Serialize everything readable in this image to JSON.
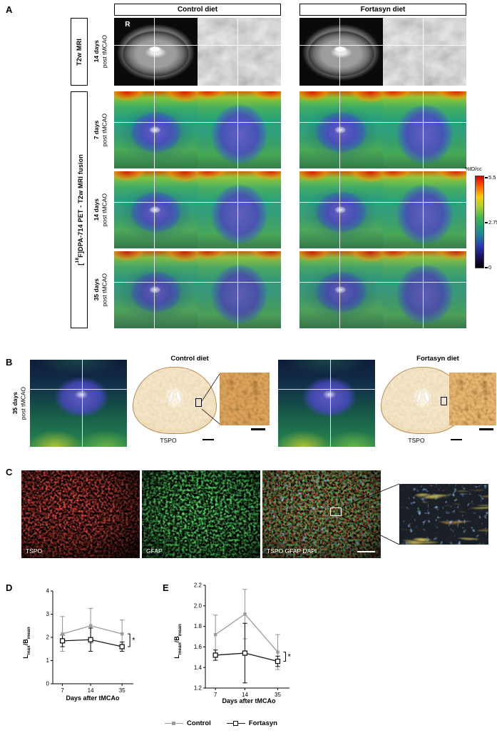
{
  "figure": {
    "panels": {
      "a": {
        "label": "A",
        "columns": [
          "Control diet",
          "Fortasyn diet"
        ],
        "t2w_box_label": "T2w MRI",
        "fusion_box_label": {
          "pre": "[",
          "sup": "18",
          "post": "F]DPA-714 PET - T2w MRI fusion"
        },
        "orientation_label": "R",
        "rows": [
          {
            "time": "14 days",
            "sub": "post tMCAO"
          },
          {
            "time": "7 days",
            "sub": "post tMCAO"
          },
          {
            "time": "14 days",
            "sub": "post tMCAO"
          },
          {
            "time": "35 days",
            "sub": "post tMCAO"
          }
        ],
        "colorbar": {
          "title": "%ID/cc",
          "tick_max": "5.5",
          "tick_mid": "2.75",
          "tick_min": "0"
        }
      },
      "b": {
        "label": "B",
        "side_time": "35 days",
        "side_sub": "post tMCAO",
        "groups": [
          {
            "title": "Control diet",
            "stain_label": "TSPO"
          },
          {
            "title": "Fortasyn diet",
            "stain_label": "TSPO"
          }
        ]
      },
      "c": {
        "label": "C",
        "images": [
          {
            "label": "TSPO"
          },
          {
            "label": "GFAP"
          },
          {
            "label": "TSPO GFAP DAPI"
          }
        ]
      },
      "d": {
        "label": "D"
      },
      "e": {
        "label": "E"
      }
    },
    "legend": {
      "control": "Control",
      "fortasyn": "Fortasyn"
    }
  },
  "chart_data": [
    {
      "id": "chart-d",
      "type": "line",
      "xlabel": "Days after tMCAo",
      "ylabel": "Lmax/Bmean",
      "ylabel_parts": {
        "base1": "L",
        "sub1": "max",
        "base2": "/B",
        "sub2": "mean"
      },
      "categories": [
        "7",
        "14",
        "35"
      ],
      "ylim": [
        0,
        4
      ],
      "yticks": [
        0,
        1,
        2,
        3,
        4
      ],
      "ytick_labels": [
        "0",
        "1",
        "2",
        "3",
        "4"
      ],
      "grid": false,
      "legend_position": "bottom",
      "series": [
        {
          "name": "Control",
          "color": "#9b9b9b",
          "marker": "filled-square",
          "values": [
            2.15,
            2.5,
            2.15
          ],
          "errors": [
            0.75,
            0.75,
            0.6
          ]
        },
        {
          "name": "Fortasyn",
          "color": "#1a1a1a",
          "marker": "open-square",
          "values": [
            1.85,
            1.9,
            1.6
          ],
          "errors": [
            0.25,
            0.5,
            0.2
          ]
        }
      ],
      "significance": "*"
    },
    {
      "id": "chart-e",
      "type": "line",
      "xlabel": "Days after tMCAo",
      "ylabel": "Lmean/Bmean",
      "ylabel_parts": {
        "base1": "L",
        "sub1": "mean",
        "base2": "/B",
        "sub2": "mean"
      },
      "categories": [
        "7",
        "14",
        "35"
      ],
      "ylim": [
        1.2,
        2.2
      ],
      "yticks": [
        1.2,
        1.4,
        1.6,
        1.8,
        2.0,
        2.2
      ],
      "ytick_labels": [
        "1.2",
        "1.4",
        "1.6",
        "1.8",
        "2.0",
        "2.2"
      ],
      "grid": false,
      "legend_position": "bottom",
      "series": [
        {
          "name": "Control",
          "color": "#9b9b9b",
          "marker": "filled-square",
          "values": [
            1.72,
            1.92,
            1.55
          ],
          "errors": [
            0.19,
            0.24,
            0.17
          ]
        },
        {
          "name": "Fortasyn",
          "color": "#1a1a1a",
          "marker": "open-square",
          "values": [
            1.52,
            1.54,
            1.46
          ],
          "errors": [
            0.05,
            0.29,
            0.05
          ]
        }
      ],
      "significance": "*"
    }
  ]
}
